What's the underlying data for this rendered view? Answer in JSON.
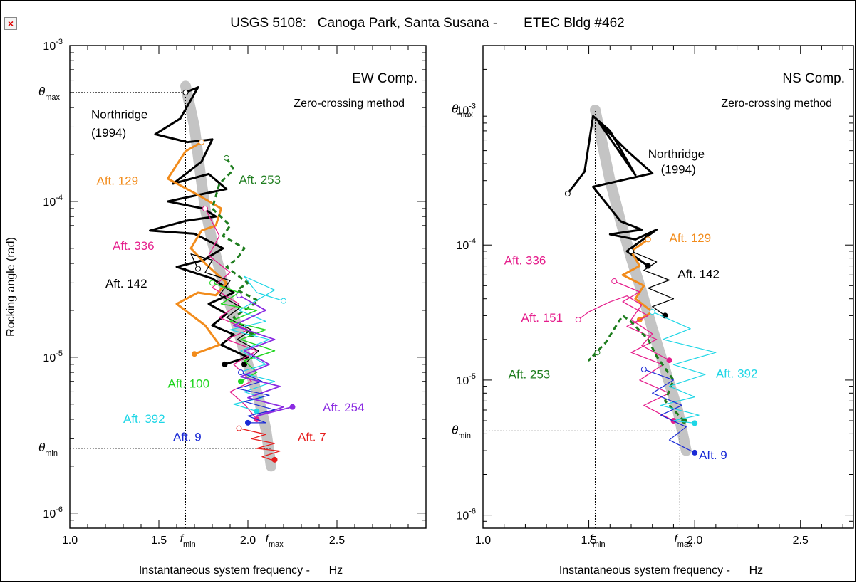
{
  "title": "USGS 5108:   Canoga Park, Santa Susana -       ETEC Bldg #462",
  "close_button": {
    "icon": "close-icon",
    "label": "×"
  },
  "chart_data": [
    {
      "type": "line",
      "panel": "left",
      "component_label": "EW Comp.",
      "method_label": "Zero-crossing method",
      "xlabel": "Instantaneous system frequency -      Hz",
      "ylabel": "Rocking angle (rad)",
      "xlim": [
        1.0,
        3.0
      ],
      "ylim": [
        8e-07,
        0.001
      ],
      "y_scale": "log",
      "x_ticks": [
        {
          "v": 1.0,
          "label": "1.0"
        },
        {
          "v": 1.5,
          "label": "1.5"
        },
        {
          "v": 2.0,
          "label": "2.0"
        },
        {
          "v": 2.5,
          "label": "2.5"
        }
      ],
      "y_ticks": [
        {
          "v": 1e-06,
          "base": "10",
          "exp": "-6"
        },
        {
          "v": 1e-05,
          "base": "10",
          "exp": "-5"
        },
        {
          "v": 0.0001,
          "base": "10",
          "exp": "-4"
        },
        {
          "v": 0.001,
          "base": "10",
          "exp": "-3"
        }
      ],
      "markers": [
        {
          "axis": "x",
          "v": 1.65,
          "sym": "f",
          "sub": "min"
        },
        {
          "axis": "x",
          "v": 2.13,
          "sym": "f",
          "sub": "max"
        },
        {
          "axis": "y",
          "v": 0.0005,
          "sym": "θ",
          "sub": "max"
        },
        {
          "axis": "y",
          "v": 2.6e-06,
          "sym": "θ",
          "sub": "min"
        }
      ],
      "trend": {
        "x": [
          1.65,
          1.7,
          1.73,
          1.76,
          1.8,
          1.86,
          1.93,
          2.0,
          2.06,
          2.1,
          2.13
        ],
        "y": [
          0.00055,
          0.0003,
          0.00016,
          9e-05,
          5.5e-05,
          3e-05,
          1.7e-05,
          9e-06,
          5.5e-06,
          3.5e-06,
          2e-06
        ]
      },
      "series": [
        {
          "name": "Northridge (1994)",
          "color": "#000000",
          "width": 3,
          "dash": "",
          "x": [
            1.65,
            1.72,
            1.62,
            1.48,
            1.66,
            1.8,
            1.74,
            1.58,
            1.78,
            1.88,
            1.72,
            1.55,
            1.75,
            1.82,
            1.65,
            1.45,
            1.7,
            1.86,
            1.75,
            1.6,
            1.8,
            1.92,
            1.78,
            1.88,
            1.8,
            1.92,
            1.85,
            2.0,
            1.87
          ],
          "y": [
            0.0005,
            0.00054,
            0.00034,
            0.00027,
            0.00024,
            0.00025,
            0.00018,
            0.00013,
            0.00015,
            0.00012,
            0.00011,
            0.0001,
            9e-05,
            8e-05,
            7.5e-05,
            6.5e-05,
            6.2e-05,
            5e-05,
            4.2e-05,
            3.8e-05,
            3.2e-05,
            2.6e-05,
            2.2e-05,
            1.9e-05,
            1.6e-05,
            1.4e-05,
            1.2e-05,
            1e-05,
            9e-06
          ]
        },
        {
          "name": "Aft. 129",
          "color": "#f28c1c",
          "width": 3,
          "dash": "",
          "x": [
            1.74,
            1.65,
            1.55,
            1.72,
            1.85,
            1.82,
            1.74,
            1.68,
            1.76,
            1.88,
            1.82,
            1.72,
            1.6,
            1.76,
            1.84,
            1.7
          ],
          "y": [
            0.00024,
            0.00021,
            0.00014,
            0.00011,
            9e-05,
            7e-05,
            6.5e-05,
            5e-05,
            4e-05,
            3e-05,
            2.5e-05,
            2.6e-05,
            2.2e-05,
            1.6e-05,
            1.2e-05,
            1.05e-05
          ]
        },
        {
          "name": "Aft. 253",
          "color": "#1e7d1e",
          "width": 3,
          "dash": "7,5",
          "x": [
            1.88,
            1.92,
            1.84,
            1.8,
            1.9,
            1.86,
            1.98,
            1.94,
            1.88,
            1.95,
            2.0,
            1.94,
            2.06,
            1.92,
            2.02
          ],
          "y": [
            0.00019,
            0.00016,
            0.00013,
            9e-05,
            7e-05,
            6e-05,
            5e-05,
            4.3e-05,
            3.8e-05,
            3.3e-05,
            3e-05,
            2.7e-05,
            2.3e-05,
            1.8e-05,
            1.4e-05
          ]
        },
        {
          "name": "Aft. 336",
          "color": "#e51e8c",
          "width": 1.3,
          "dash": "",
          "x": [
            1.76,
            1.84,
            1.78,
            1.9,
            1.8,
            1.95,
            1.84,
            2.0,
            1.88,
            2.05,
            1.92,
            2.02,
            1.9,
            1.98,
            2.05
          ],
          "y": [
            9e-05,
            6e-05,
            4.5e-05,
            3.5e-05,
            2.8e-05,
            2.2e-05,
            1.8e-05,
            1.5e-05,
            1.3e-05,
            1.1e-05,
            9e-06,
            7e-06,
            6e-06,
            5e-06,
            4e-06
          ]
        },
        {
          "name": "Aft. 142",
          "color": "#000000",
          "width": 1.3,
          "dash": "",
          "x": [
            1.72,
            1.68,
            1.8,
            1.76,
            1.9,
            1.84,
            1.96,
            1.88,
            2.02,
            1.94,
            2.06,
            1.98
          ],
          "y": [
            3.7e-05,
            4.6e-05,
            4.2e-05,
            3.5e-05,
            3.1e-05,
            2.5e-05,
            2.1e-05,
            1.8e-05,
            1.5e-05,
            1.3e-05,
            1.1e-05,
            9e-06
          ]
        },
        {
          "name": "Aft. 100",
          "color": "#22d622",
          "width": 1.5,
          "dash": "",
          "x": [
            1.8,
            1.95,
            1.85,
            2.05,
            1.9,
            2.1,
            1.96,
            2.15,
            1.98,
            2.05,
            1.96
          ],
          "y": [
            3e-05,
            2.6e-05,
            2.2e-05,
            2e-05,
            1.7e-05,
            1.5e-05,
            1.3e-05,
            1.1e-05,
            9.5e-06,
            8e-06,
            7e-06
          ]
        },
        {
          "name": "Aft. 392",
          "color": "#1ed6e6",
          "width": 1.2,
          "dash": "",
          "x": [
            2.2,
            2.05,
            1.98,
            2.15,
            1.95,
            2.1,
            1.9,
            2.12,
            1.96,
            2.1,
            1.95,
            2.15,
            1.98,
            2.08,
            1.92,
            2.05
          ],
          "y": [
            2.3e-05,
            2.6e-05,
            3.3e-05,
            2.7e-05,
            2e-05,
            1.7e-05,
            1.5e-05,
            1.3e-05,
            1.1e-05,
            9e-06,
            8e-06,
            7e-06,
            6e-06,
            5.5e-06,
            5e-06,
            4.5e-06
          ]
        },
        {
          "name": "Aft. 254",
          "color": "#8a2be2",
          "width": 1.8,
          "dash": "",
          "x": [
            1.95,
            2.1,
            1.92,
            2.15,
            1.98,
            2.12,
            1.96,
            2.18,
            2.0,
            2.2,
            2.05,
            2.25
          ],
          "y": [
            2.5e-05,
            2e-05,
            1.6e-05,
            1.3e-05,
            1.1e-05,
            9e-06,
            7.5e-06,
            6.5e-06,
            5.5e-06,
            4.8e-06,
            4.2e-06,
            4.8e-06
          ]
        },
        {
          "name": "Aft. 9",
          "color": "#1a2ad6",
          "width": 1.2,
          "dash": "",
          "x": [
            1.96,
            2.08,
            1.94,
            2.12,
            1.98,
            2.15,
            2.0,
            2.1,
            2.0
          ],
          "y": [
            8e-06,
            7e-06,
            6.3e-06,
            5.7e-06,
            5.2e-06,
            4.6e-06,
            4.2e-06,
            3.8e-06,
            3.8e-06
          ]
        },
        {
          "name": "Aft. 7",
          "color": "#e61e1e",
          "width": 1.3,
          "dash": "",
          "x": [
            1.95,
            2.1,
            2.02,
            2.15,
            2.05,
            2.18,
            2.08,
            2.13,
            2.15
          ],
          "y": [
            3.5e-06,
            3.2e-06,
            3e-06,
            2.8e-06,
            2.6e-06,
            2.5e-06,
            2.3e-06,
            2.2e-06,
            2.2e-06
          ]
        }
      ],
      "labels": [
        {
          "text": "Northridge",
          "color": "#000000",
          "x": 1.12,
          "y": 0.00034
        },
        {
          "text": "(1994)",
          "color": "#000000",
          "x": 1.12,
          "y": 0.00026
        },
        {
          "text": "Aft. 129",
          "color": "#f28c1c",
          "x": 1.15,
          "y": 0.000128
        },
        {
          "text": "Aft. 253",
          "color": "#1e7d1e",
          "x": 1.95,
          "y": 0.00013
        },
        {
          "text": "Aft. 336",
          "color": "#e51e8c",
          "x": 1.24,
          "y": 4.9e-05
        },
        {
          "text": "Aft. 142",
          "color": "#000000",
          "x": 1.2,
          "y": 2.8e-05
        },
        {
          "text": "Aft. 100",
          "color": "#22d622",
          "x": 1.55,
          "y": 6.4e-06
        },
        {
          "text": "Aft. 392",
          "color": "#1ed6e6",
          "x": 1.3,
          "y": 3.8e-06
        },
        {
          "text": "Aft. 254",
          "color": "#8a2be2",
          "x": 2.42,
          "y": 4.5e-06
        },
        {
          "text": "Aft. 9",
          "color": "#1a2ad6",
          "x": 1.58,
          "y": 2.9e-06
        },
        {
          "text": "Aft. 7",
          "color": "#e61e1e",
          "x": 2.28,
          "y": 2.9e-06
        }
      ]
    },
    {
      "type": "line",
      "panel": "right",
      "component_label": "NS Comp.",
      "method_label": "Zero-crossing method",
      "xlabel": "Instantaneous system frequency -      Hz",
      "ylabel": "",
      "xlim": [
        1.0,
        2.75
      ],
      "ylim": [
        8e-07,
        0.003
      ],
      "y_scale": "log",
      "x_ticks": [
        {
          "v": 1.0,
          "label": "1.0"
        },
        {
          "v": 1.5,
          "label": "1.5"
        },
        {
          "v": 2.0,
          "label": "2.0"
        },
        {
          "v": 2.5,
          "label": "2.5"
        }
      ],
      "y_ticks": [
        {
          "v": 1e-06,
          "base": "10",
          "exp": "-6"
        },
        {
          "v": 1e-05,
          "base": "10",
          "exp": "-5"
        },
        {
          "v": 0.0001,
          "base": "10",
          "exp": "-4"
        },
        {
          "v": 0.001,
          "base": "10",
          "exp": "-3"
        }
      ],
      "markers": [
        {
          "axis": "x",
          "v": 1.53,
          "sym": "f",
          "sub": "min"
        },
        {
          "axis": "x",
          "v": 1.93,
          "sym": "f",
          "sub": "max"
        },
        {
          "axis": "y",
          "v": 0.001,
          "sym": "θ",
          "sub": "max"
        },
        {
          "axis": "y",
          "v": 4.2e-06,
          "sym": "θ",
          "sub": "min"
        }
      ],
      "trend": {
        "x": [
          1.53,
          1.56,
          1.6,
          1.65,
          1.7,
          1.75,
          1.8,
          1.86,
          1.92,
          1.96
        ],
        "y": [
          0.001,
          0.0006,
          0.0003,
          0.00015,
          8e-05,
          4.5e-05,
          2.4e-05,
          1.2e-05,
          6e-06,
          3e-06
        ]
      },
      "series": [
        {
          "name": "Northridge (1994)",
          "color": "#000000",
          "width": 3,
          "dash": "",
          "x": [
            1.4,
            1.48,
            1.52,
            1.6,
            1.72,
            1.55,
            1.68,
            1.8,
            1.52,
            1.65,
            1.75,
            1.6,
            1.72,
            1.82,
            1.68,
            1.78
          ],
          "y": [
            0.00024,
            0.00035,
            0.0009,
            0.0007,
            0.00033,
            0.0008,
            0.0005,
            0.00034,
            0.00027,
            0.00015,
            0.00013,
            0.00012,
            0.00011,
            0.00013,
            9e-05,
            7e-05
          ]
        },
        {
          "name": "Aft. 129",
          "color": "#f28c1c",
          "width": 3,
          "dash": "",
          "x": [
            1.78,
            1.7,
            1.74,
            1.66,
            1.76,
            1.72,
            1.8,
            1.74
          ],
          "y": [
            0.00011,
            9e-05,
            7e-05,
            6e-05,
            5e-05,
            4e-05,
            3.2e-05,
            2.8e-05
          ]
        },
        {
          "name": "Aft. 142",
          "color": "#000000",
          "width": 1.3,
          "dash": "",
          "x": [
            1.7,
            1.82,
            1.76,
            1.88,
            1.78,
            1.9,
            1.8,
            1.86
          ],
          "y": [
            9e-05,
            7.5e-05,
            6.5e-05,
            5.5e-05,
            4.8e-05,
            4e-05,
            3.5e-05,
            3e-05
          ]
        },
        {
          "name": "Aft. 336",
          "color": "#e51e8c",
          "width": 1.3,
          "dash": "",
          "x": [
            1.62,
            1.74,
            1.66,
            1.78,
            1.68,
            1.82,
            1.7,
            1.85,
            1.74,
            1.88,
            1.76,
            1.9
          ],
          "y": [
            5.4e-05,
            4.5e-05,
            3.8e-05,
            3e-05,
            2.5e-05,
            2e-05,
            1.6e-05,
            1.3e-05,
            1e-05,
            8e-06,
            6.5e-06,
            5e-06
          ]
        },
        {
          "name": "Aft. 151",
          "color": "#e51e8c",
          "width": 1.3,
          "dash": "",
          "x": [
            1.45,
            1.5,
            1.6,
            1.68,
            1.75,
            1.7,
            1.8,
            1.75,
            1.88
          ],
          "y": [
            2.8e-05,
            3.2e-05,
            3.8e-05,
            4.2e-05,
            3.6e-05,
            2.8e-05,
            2.2e-05,
            1.8e-05,
            1.4e-05
          ]
        },
        {
          "name": "Aft. 253",
          "color": "#1e7d1e",
          "width": 3,
          "dash": "7,5",
          "x": [
            1.54,
            1.5,
            1.58,
            1.62,
            1.66,
            1.7,
            1.78,
            1.82,
            1.9,
            1.86,
            1.95
          ],
          "y": [
            1.6e-05,
            1.4e-05,
            1.9e-05,
            2.4e-05,
            3e-05,
            2.7e-05,
            2e-05,
            1.5e-05,
            1e-05,
            7e-06,
            5e-06
          ]
        },
        {
          "name": "Aft. 392",
          "color": "#1ed6e6",
          "width": 1.2,
          "dash": "",
          "x": [
            1.8,
            1.98,
            1.85,
            2.1,
            1.9,
            2.05,
            1.88,
            2.0,
            1.84,
            2.02,
            1.9,
            2.0
          ],
          "y": [
            3.2e-05,
            2.4e-05,
            2e-05,
            1.6e-05,
            1.3e-05,
            1.1e-05,
            9e-06,
            7.5e-06,
            6.5e-06,
            5.5e-06,
            5e-06,
            4.8e-06
          ]
        },
        {
          "name": "Aft. 9",
          "color": "#1a2ad6",
          "width": 1.2,
          "dash": "",
          "x": [
            1.76,
            1.9,
            1.8,
            1.94,
            1.84,
            1.96,
            1.88,
            2.0
          ],
          "y": [
            1.2e-05,
            1e-05,
            8e-06,
            6.5e-06,
            5.5e-06,
            4.5e-06,
            3.6e-06,
            2.9e-06
          ]
        }
      ],
      "labels": [
        {
          "text": "Northridge",
          "color": "#000000",
          "x": 1.78,
          "y": 0.00044
        },
        {
          "text": "(1994)",
          "color": "#000000",
          "x": 1.84,
          "y": 0.00034
        },
        {
          "text": "Aft. 129",
          "color": "#f28c1c",
          "x": 1.88,
          "y": 0.000105
        },
        {
          "text": "Aft. 142",
          "color": "#000000",
          "x": 1.92,
          "y": 5.7e-05
        },
        {
          "text": "Aft. 336",
          "color": "#e51e8c",
          "x": 1.1,
          "y": 7.2e-05
        },
        {
          "text": "Aft. 151",
          "color": "#e51e8c",
          "x": 1.18,
          "y": 2.7e-05
        },
        {
          "text": "Aft. 253",
          "color": "#1e7d1e",
          "x": 1.12,
          "y": 1.03e-05
        },
        {
          "text": "Aft. 392",
          "color": "#1ed6e6",
          "x": 2.1,
          "y": 1.04e-05
        },
        {
          "text": "Aft. 9",
          "color": "#1a2ad6",
          "x": 2.02,
          "y": 2.6e-06
        }
      ]
    }
  ]
}
